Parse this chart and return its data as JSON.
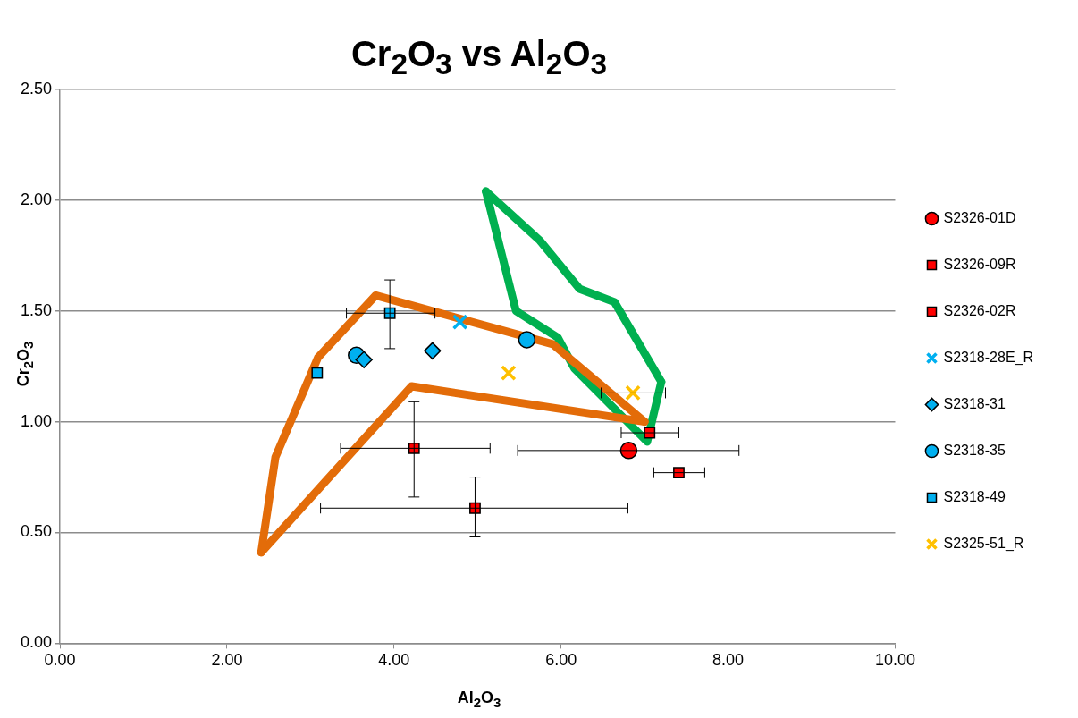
{
  "chart_data": {
    "type": "scatter",
    "title": "Cr$_{2}$O$_{3}$ vs Al$_{2}$O$_{3}$",
    "xlabel": "Al$_{2}$O$_{3}$",
    "ylabel": "Cr$_{2}$O$_{3}$",
    "xlim": [
      0,
      10
    ],
    "xticks": [
      {
        "value": 0,
        "label": "0.00"
      },
      {
        "value": 2,
        "label": "2.00"
      },
      {
        "value": 4,
        "label": "4.00"
      },
      {
        "value": 6,
        "label": "6.00"
      },
      {
        "value": 8,
        "label": "8.00"
      },
      {
        "value": 10,
        "label": "10.00"
      }
    ],
    "ylim": [
      0,
      2.5
    ],
    "yticks": [
      {
        "value": 0,
        "label": "0.00"
      },
      {
        "value": 0.5,
        "label": "0.50"
      },
      {
        "value": 1,
        "label": "1.00"
      },
      {
        "value": 1.5,
        "label": "1.50"
      },
      {
        "value": 2,
        "label": "2.00"
      },
      {
        "value": 2.5,
        "label": "2.50"
      }
    ],
    "grid": "y",
    "legend": "right",
    "series": [
      {
        "name": "S2326-01D",
        "color": "#ff0000",
        "marker": "circle",
        "x": [
          6.81
        ],
        "values": [
          0.87
        ],
        "xerrors": [
          [
            5.48,
            8.13
          ]
        ]
      },
      {
        "name": "S2326-09R",
        "color": "#ff0000",
        "marker": "square",
        "x": [
          7.06,
          4.24
        ],
        "values": [
          0.95,
          0.88
        ],
        "xerrors": [
          [
            6.72,
            7.41
          ],
          [
            3.36,
            5.15
          ]
        ],
        "errors": [
          null,
          [
            0.66,
            1.09
          ]
        ]
      },
      {
        "name": "S2326-02R",
        "color": "#ff0000",
        "marker": "square",
        "x": [
          4.97,
          7.41
        ],
        "values": [
          0.61,
          0.77
        ],
        "xerrors": [
          [
            3.12,
            6.8
          ],
          [
            7.11,
            7.72
          ]
        ],
        "errors": [
          [
            0.48,
            0.75
          ],
          null
        ]
      },
      {
        "name": "S2318-28E_R",
        "color": "#00b0f0",
        "marker": "cross",
        "x": [
          4.79
        ],
        "values": [
          1.45
        ]
      },
      {
        "name": "S2318-31",
        "color": "#00b0f0",
        "marker": "diamond",
        "x": [
          4.46,
          3.64
        ],
        "values": [
          1.32,
          1.28
        ]
      },
      {
        "name": "S2318-35",
        "color": "#00b0f0",
        "marker": "circle",
        "x": [
          5.59,
          3.55
        ],
        "values": [
          1.37,
          1.3
        ]
      },
      {
        "name": "S2318-49",
        "color": "#00b0f0",
        "marker": "square",
        "x": [
          3.95,
          3.08
        ],
        "values": [
          1.49,
          1.22
        ],
        "xerrors": [
          [
            3.43,
            4.49
          ],
          null
        ],
        "errors": [
          [
            1.33,
            1.64
          ],
          null
        ]
      },
      {
        "name": "S2325-51_R",
        "color": "#ffc000",
        "marker": "cross",
        "x": [
          6.86,
          5.37
        ],
        "values": [
          1.13,
          1.22
        ],
        "xerrors": [
          [
            6.48,
            7.25
          ],
          null
        ]
      },
      {
        "type": "line",
        "color": "#e36c09",
        "marker": "none",
        "x": [
          2.41,
          2.58,
          3.09,
          3.78,
          5.9,
          7.0
        ],
        "values": [
          0.41,
          0.84,
          1.29,
          1.57,
          1.35,
          1.0
        ]
      },
      {
        "type": "line",
        "color": "#e36c09",
        "marker": "none",
        "x": [
          2.41,
          4.21,
          7.0
        ],
        "values": [
          0.41,
          1.16,
          1.0
        ]
      },
      {
        "type": "line",
        "color": "#00b050",
        "marker": "none",
        "x": [
          5.1,
          5.74,
          6.22,
          6.64,
          7.2
        ],
        "values": [
          2.04,
          1.82,
          1.6,
          1.54,
          1.18
        ]
      },
      {
        "type": "line",
        "color": "#00b050",
        "marker": "none",
        "x": [
          5.1,
          5.46,
          5.96,
          6.16,
          7.03,
          7.2
        ],
        "values": [
          2.04,
          1.5,
          1.38,
          1.24,
          0.91,
          1.18
        ]
      }
    ]
  }
}
